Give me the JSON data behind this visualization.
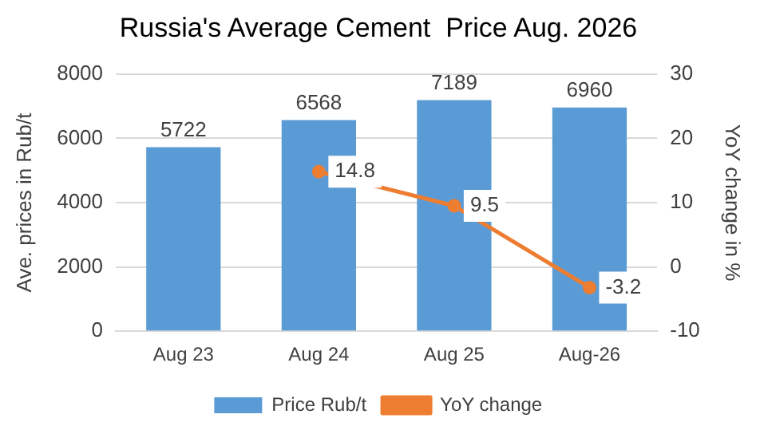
{
  "chart_data": {
    "type": "bar",
    "title": "Russia's Average Cement  Price Aug. 2026",
    "ylabel": "Ave. prices in Rub/t",
    "y2label": "YoY change in %",
    "categories": [
      "Aug 23",
      "Aug 24",
      "Aug 25",
      "Aug-26"
    ],
    "series": [
      {
        "name": "Price Rub/t",
        "color": "#5b9bd5",
        "values": [
          5722,
          6568,
          7189,
          6960
        ]
      },
      {
        "name": "YoY change",
        "type": "line",
        "axis": "y2",
        "color": "#ed7d31",
        "marker": "circle",
        "values": [
          null,
          14.8,
          9.5,
          -3.2
        ]
      }
    ],
    "ylim": [
      0,
      8000
    ],
    "yticks": [
      0,
      2000,
      4000,
      6000,
      8000
    ],
    "y2lim": [
      -10,
      30
    ],
    "y2ticks": [
      -10,
      0,
      10,
      20,
      30
    ],
    "grid": "y",
    "legend": "bottom",
    "data_labels": true
  }
}
